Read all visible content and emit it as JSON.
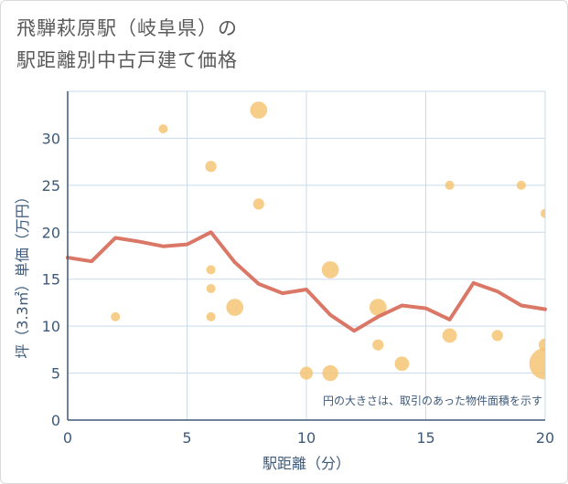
{
  "title_lines": [
    "飛騨萩原駅（岐阜県）の",
    "駅距離別中古戸建て価格"
  ],
  "chart_data": {
    "type": "scatter",
    "xlabel": "駅距離（分）",
    "ylabel": "坪（3.3㎡）単価（万円）",
    "xlim": [
      0,
      20
    ],
    "ylim": [
      0,
      35
    ],
    "xticks": [
      0,
      5,
      10,
      15,
      20
    ],
    "yticks": [
      0,
      5,
      10,
      15,
      20,
      25,
      30
    ],
    "grid": true,
    "annotation": "円の大きさは、取引のあった物件面積を示す",
    "colors": {
      "scatter": "#f5c26b",
      "line": "#d9705e",
      "axis": "#3d5a7a",
      "grid": "#c9d9e8"
    },
    "scatter": [
      {
        "x": 2,
        "y": 11,
        "size": 1
      },
      {
        "x": 4,
        "y": 31,
        "size": 1
      },
      {
        "x": 6,
        "y": 27,
        "size": 1.5
      },
      {
        "x": 6,
        "y": 16,
        "size": 1
      },
      {
        "x": 6,
        "y": 14,
        "size": 1
      },
      {
        "x": 6,
        "y": 11,
        "size": 1
      },
      {
        "x": 7,
        "y": 12,
        "size": 3.5
      },
      {
        "x": 8,
        "y": 33,
        "size": 3.5
      },
      {
        "x": 8,
        "y": 23,
        "size": 1.5
      },
      {
        "x": 10,
        "y": 5,
        "size": 2
      },
      {
        "x": 11,
        "y": 16,
        "size": 3.5
      },
      {
        "x": 11,
        "y": 5,
        "size": 3
      },
      {
        "x": 13,
        "y": 12,
        "size": 3.5
      },
      {
        "x": 13,
        "y": 8,
        "size": 1.5
      },
      {
        "x": 14,
        "y": 6,
        "size": 2.5
      },
      {
        "x": 16,
        "y": 25,
        "size": 1
      },
      {
        "x": 16,
        "y": 9,
        "size": 2.5
      },
      {
        "x": 18,
        "y": 9,
        "size": 1.5
      },
      {
        "x": 19,
        "y": 25,
        "size": 1
      },
      {
        "x": 20,
        "y": 22,
        "size": 1
      },
      {
        "x": 20,
        "y": 8,
        "size": 2
      },
      {
        "x": 20,
        "y": 6,
        "size": 12
      }
    ],
    "line": {
      "x": [
        0,
        1,
        2,
        3,
        4,
        5,
        6,
        7,
        8,
        9,
        10,
        11,
        12,
        13,
        14,
        15,
        16,
        17,
        18,
        19,
        20
      ],
      "y": [
        17.3,
        16.9,
        19.4,
        19.0,
        18.5,
        18.7,
        20.0,
        16.8,
        14.5,
        13.5,
        13.9,
        11.2,
        9.5,
        11.0,
        12.2,
        11.9,
        10.7,
        14.6,
        13.7,
        12.2,
        11.8
      ]
    }
  }
}
